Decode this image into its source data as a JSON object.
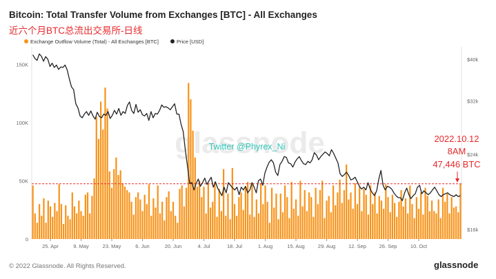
{
  "header": {
    "title": "Bitcoin: Total Transfer Volume from Exchanges [BTC] - All Exchanges",
    "subtitle": "近六个月BTC总流出交易所-日线"
  },
  "footer": {
    "copyright": "© 2022 Glassnode. All Rights Reserved.",
    "brand": "glassnode"
  },
  "overlay": {
    "watermark": "glassnode",
    "twitter": "Twitter @Phyrex_Ni",
    "annotation_date": "2022.10.12",
    "annotation_time": "8AM",
    "annotation_value": "47,446 BTC"
  },
  "colors": {
    "bars": "#f7931a",
    "price": "#222222",
    "refline": "#e8282b",
    "annotation": "#e8282b",
    "twitter": "#2ec4b6"
  },
  "chart_data": {
    "type": "bar",
    "legend": {
      "placement": "top-left",
      "items": [
        "Exchange Outflow Volume (Total) - All Exchanges [BTC]",
        "Price [USD]"
      ]
    },
    "x_ticks": [
      "25. Apr",
      "9. May",
      "23. May",
      "6. Jun",
      "20. Jun",
      "4. Jul",
      "18. Jul",
      "1. Aug",
      "15. Aug",
      "29. Aug",
      "12. Sep",
      "26. Sep",
      "10. Oct"
    ],
    "y_left": {
      "ticks": [
        "0",
        "50K",
        "100K",
        "150K"
      ],
      "range": [
        0,
        165000
      ]
    },
    "y_right": {
      "ticks": [
        "$16k",
        "$24k",
        "$32k",
        "$40k"
      ],
      "range": [
        15200,
        42800
      ],
      "scale": "log"
    },
    "reference_line": {
      "value": 47446
    },
    "grid": false,
    "series": [
      {
        "name": "Exchange Outflow Volume (Total) - All Exchanges [BTC]",
        "axis": "left",
        "kind": "bar",
        "values": [
          46000,
          22000,
          14000,
          30000,
          20000,
          35000,
          14000,
          33000,
          28000,
          19000,
          31000,
          24000,
          47000,
          30000,
          13000,
          29000,
          20000,
          17000,
          40000,
          28000,
          22000,
          33000,
          24000,
          20000,
          38000,
          40000,
          22000,
          37000,
          52000,
          105000,
          86000,
          118000,
          94000,
          130000,
          112000,
          58000,
          44000,
          60000,
          70000,
          55000,
          59000,
          48000,
          45000,
          42000,
          40000,
          32000,
          21000,
          36000,
          40000,
          34000,
          24000,
          38000,
          30000,
          47000,
          20000,
          35000,
          27000,
          46000,
          22000,
          32000,
          16000,
          36000,
          41000,
          24000,
          32000,
          20000,
          14000,
          43000,
          46000,
          28000,
          44000,
          134000,
          120000,
          93000,
          70000,
          45000,
          50000,
          36000,
          45000,
          22000,
          48000,
          27000,
          32000,
          49000,
          19000,
          43000,
          24000,
          60000,
          20000,
          39000,
          17000,
          61000,
          30000,
          20000,
          36000,
          40000,
          25000,
          45000,
          49000,
          21000,
          47000,
          19000,
          34000,
          22000,
          48000,
          30000,
          46000,
          32000,
          14000,
          44000,
          27000,
          39000,
          17000,
          39000,
          23000,
          46000,
          36000,
          18000,
          49000,
          26000,
          34000,
          20000,
          50000,
          28000,
          42000,
          24000,
          40000,
          36000,
          19000,
          44000,
          30000,
          42000,
          50000,
          18000,
          33000,
          37000,
          23000,
          46000,
          29000,
          40000,
          51000,
          31000,
          42000,
          64000,
          34000,
          40000,
          26000,
          48000,
          30000,
          45000,
          24000,
          43000,
          38000,
          21000,
          46000,
          30000,
          40000,
          22000,
          37000,
          33000,
          26000,
          47000,
          36000,
          23000,
          38000,
          31000,
          19000,
          32000,
          42000,
          28000,
          35000,
          22000,
          46000,
          30000,
          18000,
          36000,
          26000,
          40000,
          21000,
          44000,
          37000,
          24000,
          33000,
          24000,
          22000,
          34000,
          18000,
          44000,
          32000,
          39000,
          22000,
          36000,
          27000,
          28000,
          23000,
          47446
        ]
      },
      {
        "name": "Price [USD]",
        "axis": "right",
        "kind": "line",
        "values": [
          41000,
          40200,
          39800,
          41200,
          40700,
          39600,
          40600,
          40000,
          38500,
          39200,
          38300,
          38800,
          37900,
          38400,
          38300,
          38800,
          37800,
          36000,
          34500,
          34000,
          31500,
          30800,
          29500,
          29200,
          29800,
          30200,
          29600,
          30300,
          29500,
          29000,
          30100,
          29400,
          29200,
          29800,
          29600,
          30200,
          29100,
          29600,
          30400,
          29800,
          30700,
          29600,
          30200,
          29900,
          31200,
          31800,
          30400,
          29900,
          31400,
          30100,
          30500,
          29700,
          29500,
          29900,
          28800,
          30200,
          29200,
          29900,
          29800,
          30400,
          31300,
          30900,
          31000,
          30800,
          30500,
          31000,
          31500,
          29800,
          29800,
          28200,
          27100,
          24500,
          22500,
          20500,
          20600,
          19800,
          20500,
          21000,
          20200,
          20600,
          21100,
          20400,
          20800,
          21200,
          20100,
          20700,
          20000,
          19600,
          19200,
          20100,
          19500,
          20600,
          20300,
          20000,
          19800,
          20100,
          19300,
          20100,
          19800,
          20200,
          19500,
          19800,
          20600,
          20100,
          19500,
          20800,
          21000,
          20300,
          21700,
          22400,
          23000,
          23300,
          22900,
          21800,
          21400,
          22700,
          23100,
          23700,
          23600,
          22900,
          22800,
          22400,
          23000,
          23400,
          23700,
          23200,
          22800,
          22700,
          23100,
          22900,
          23300,
          24200,
          23900,
          23300,
          23700,
          24000,
          24300,
          24100,
          23800,
          24600,
          24100,
          23500,
          22900,
          21600,
          21300,
          21500,
          21800,
          21400,
          20900,
          21000,
          21200,
          20700,
          20200,
          19900,
          20100,
          19800,
          20600,
          19900,
          19500,
          19200,
          19700,
          21000,
          22000,
          20300,
          19800,
          20200,
          20100,
          19900,
          19500,
          19200,
          19000,
          19000,
          18700,
          19500,
          20000,
          19300,
          18900,
          19200,
          19400,
          20100,
          20300,
          19400,
          19700,
          19500,
          19300,
          19500,
          19800,
          20100,
          19700,
          19300,
          19100,
          19300,
          19400,
          19500,
          19300,
          19200,
          19100,
          19300,
          19100,
          19200
        ]
      }
    ]
  }
}
